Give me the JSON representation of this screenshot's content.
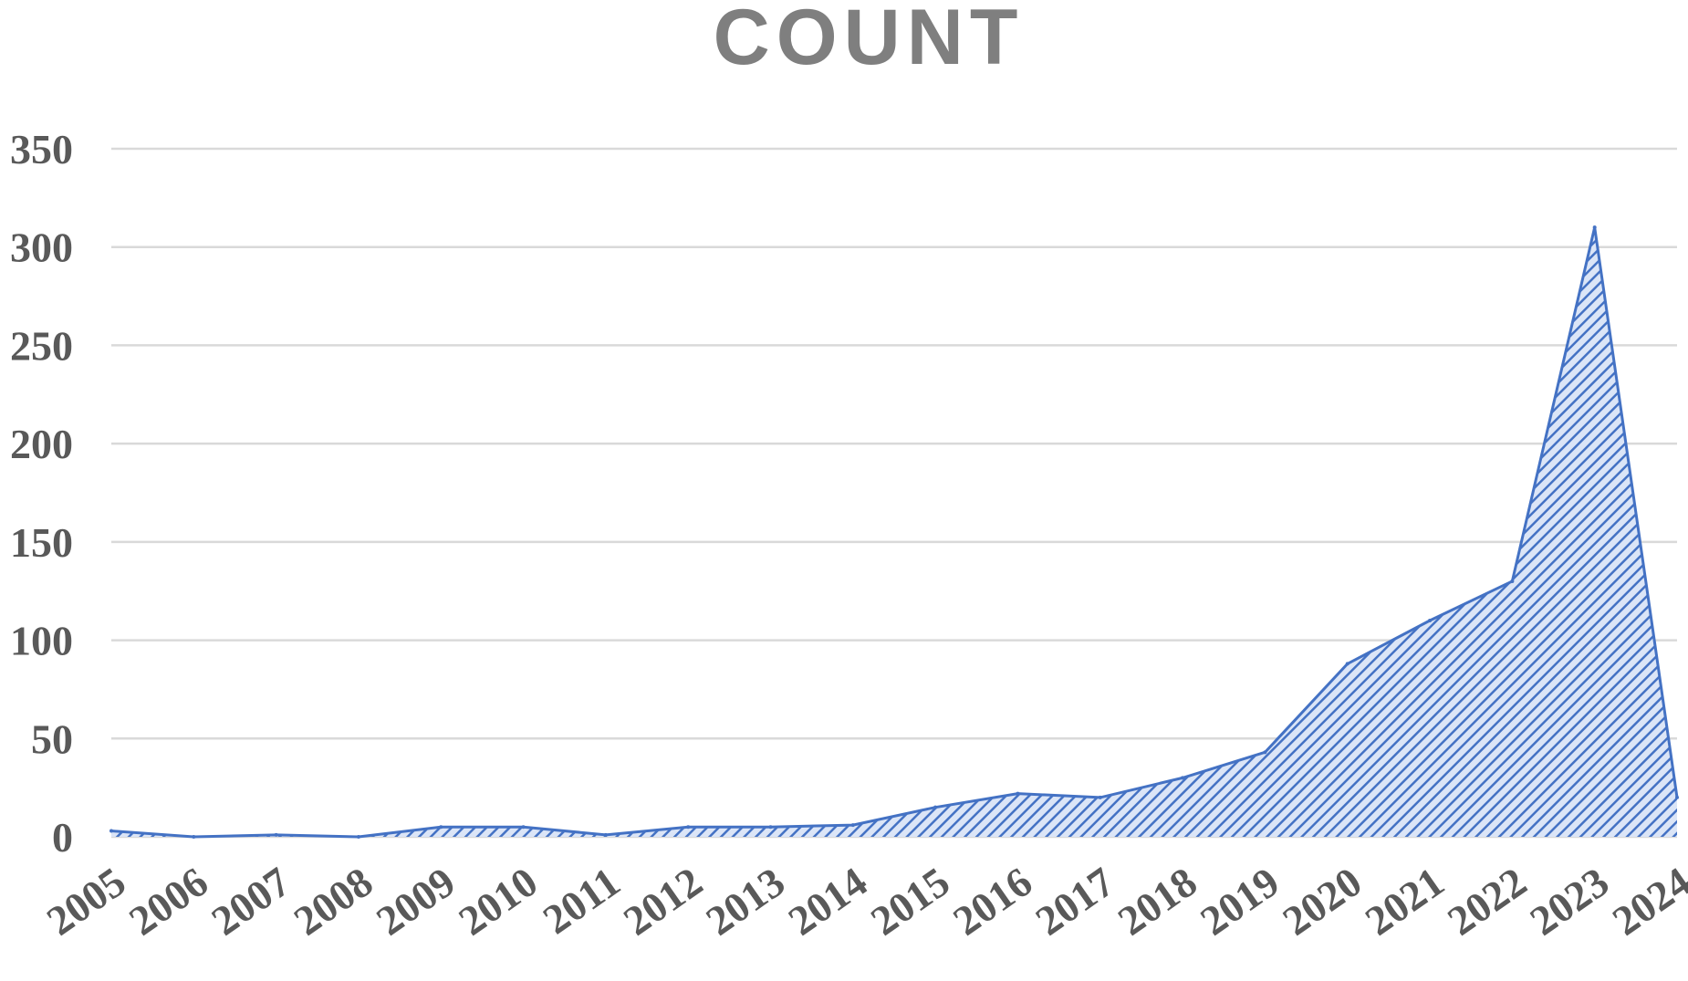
{
  "chart_data": {
    "type": "area",
    "title": "COUNT",
    "xlabel": "",
    "ylabel": "",
    "x": [
      "2005",
      "2006",
      "2007",
      "2008",
      "2009",
      "2010",
      "2011",
      "2012",
      "2013",
      "2014",
      "2015",
      "2016",
      "2017",
      "2018",
      "2019",
      "2020",
      "2021",
      "2022",
      "2023",
      "2024"
    ],
    "series": [
      {
        "values": [
          3,
          0,
          1,
          0,
          5,
          5,
          1,
          5,
          5,
          6,
          15,
          22,
          20,
          30,
          43,
          88,
          110,
          130,
          310,
          20
        ]
      }
    ],
    "ylim": [
      0,
      350
    ],
    "y_ticks": [
      0,
      50,
      100,
      150,
      200,
      250,
      300,
      350
    ],
    "grid": true,
    "legend": "none",
    "fill_color": "#4472c4",
    "hatch_color": "#2f5597",
    "light_color": "#dbe5f7"
  }
}
